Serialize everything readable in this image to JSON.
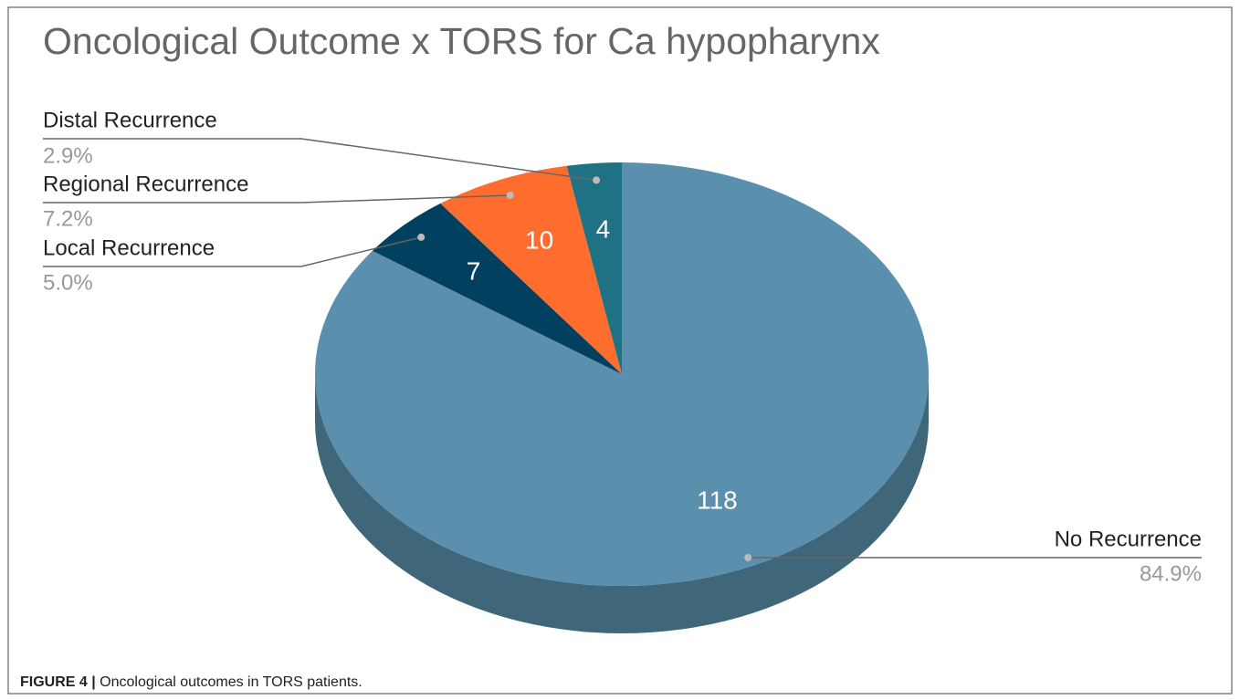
{
  "chart_data": {
    "type": "pie",
    "title": "Oncological Outcome x TORS for Ca hypopharynx",
    "categories": [
      "No Recurrence",
      "Local Recurrence",
      "Regional Recurrence",
      "Distal Recurrence"
    ],
    "values": [
      118,
      7,
      10,
      4
    ],
    "percent_labels": [
      "84.9%",
      "5.0%",
      "7.2%",
      "2.9%"
    ],
    "colors": [
      "#5a8fae",
      "#01415f",
      "#ff6d2e",
      "#1f7283"
    ],
    "side_color": "#3f6779"
  },
  "caption": {
    "label": "FIGURE 4 |",
    "text": "Oncological outcomes in TORS patients."
  }
}
